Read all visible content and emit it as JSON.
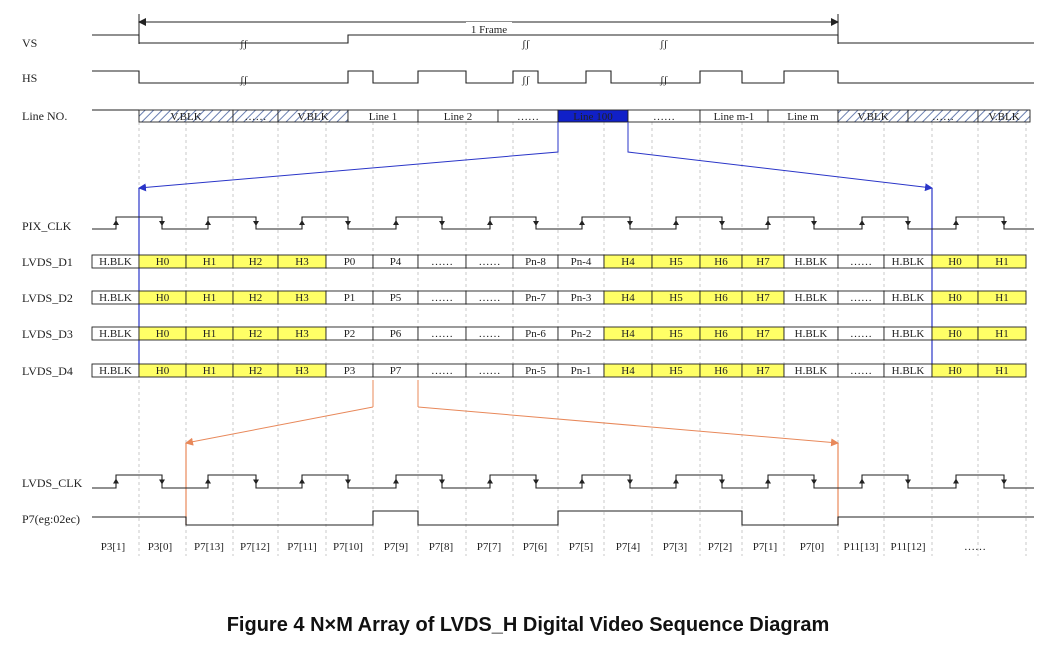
{
  "caption": "Figure 4 N×M Array of LVDS_H Digital Video Sequence Diagram",
  "frame_label": "1 Frame",
  "signal_labels": {
    "vs": "VS",
    "hs": "HS",
    "line_no": "Line NO.",
    "pix_clk": "PIX_CLK",
    "lvds_d1": "LVDS_D1",
    "lvds_d2": "LVDS_D2",
    "lvds_d3": "LVDS_D3",
    "lvds_d4": "LVDS_D4",
    "lvds_clk": "LVDS_CLK",
    "p7": "P7(eg:02ec)"
  },
  "line_cells": [
    "V.BLK",
    "……",
    "V.BLK",
    "Line 1",
    "Line 2",
    "……",
    "Line 100",
    "……",
    "Line m-1",
    "Line m",
    "V.BLK",
    "……",
    "V.BLK"
  ],
  "lvds_rows": [
    [
      "H.BLK",
      "H0",
      "H1",
      "H2",
      "H3",
      "P0",
      "P4",
      "……",
      "……",
      "Pn-8",
      "Pn-4",
      "H4",
      "H5",
      "H6",
      "H7",
      "H.BLK",
      "……",
      "H.BLK",
      "H0",
      "H1"
    ],
    [
      "H.BLK",
      "H0",
      "H1",
      "H2",
      "H3",
      "P1",
      "P5",
      "……",
      "……",
      "Pn-7",
      "Pn-3",
      "H4",
      "H5",
      "H6",
      "H7",
      "H.BLK",
      "……",
      "H.BLK",
      "H0",
      "H1"
    ],
    [
      "H.BLK",
      "H0",
      "H1",
      "H2",
      "H3",
      "P2",
      "P6",
      "……",
      "……",
      "Pn-6",
      "Pn-2",
      "H4",
      "H5",
      "H6",
      "H7",
      "H.BLK",
      "……",
      "H.BLK",
      "H0",
      "H1"
    ],
    [
      "H.BLK",
      "H0",
      "H1",
      "H2",
      "H3",
      "P3",
      "P7",
      "……",
      "……",
      "Pn-5",
      "Pn-1",
      "H4",
      "H5",
      "H6",
      "H7",
      "H.BLK",
      "……",
      "H.BLK",
      "H0",
      "H1"
    ]
  ],
  "bit_labels": [
    "P3[1]",
    "P3[0]",
    "P7[13]",
    "P7[12]",
    "P7[11]",
    "P7[10]",
    "P7[9]",
    "P7[8]",
    "P7[7]",
    "P7[6]",
    "P7[5]",
    "P7[4]",
    "P7[3]",
    "P7[2]",
    "P7[1]",
    "P7[0]",
    "P11[13]",
    "P11[12]",
    "……"
  ],
  "colors": {
    "highlight": "#ffff66",
    "line_highlight": "#1020c8",
    "blue_connector": "#2a35c8",
    "orange_connector": "#e8885a",
    "hatch": "#6a7fb0"
  }
}
